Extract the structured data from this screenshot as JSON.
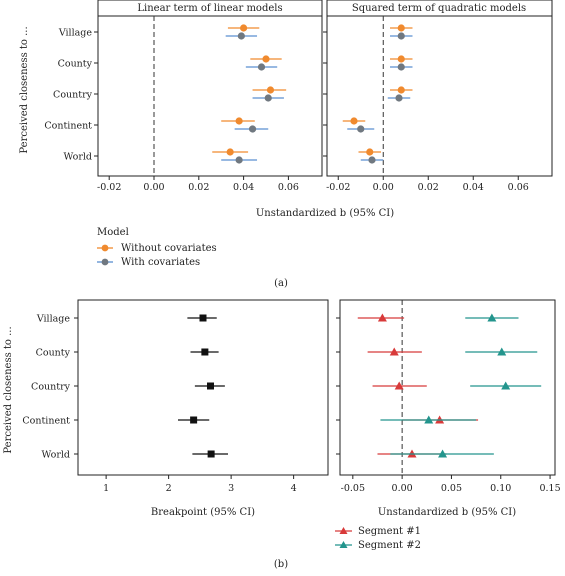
{
  "panel_a": {
    "ylabel": "Perceived closeness to ...",
    "xlabel": "Unstandardized b (95% CI)",
    "caption": "(a)",
    "legend": {
      "title": "Model",
      "entries": [
        "Without covariates",
        "With covariates"
      ]
    }
  },
  "panel_b": {
    "ylabel": "Perceived closeness to ...",
    "caption": "(b)",
    "legend": {
      "entries": [
        "Segment #1",
        "Segment #2"
      ]
    }
  },
  "colors": {
    "orange": "#f08a2e",
    "gray": "#707880",
    "blue": "#5b8fd0",
    "red": "#d83a3a",
    "teal": "#23958d"
  },
  "chart_data": [
    {
      "type": "scatter",
      "title": "Linear term of linear models",
      "xlabel": "Unstandardized b (95% CI)",
      "ylabel": "Perceived closeness to ...",
      "categories": [
        "Village",
        "County",
        "Country",
        "Continent",
        "World"
      ],
      "xlim": [
        -0.025,
        0.075
      ],
      "xticks": [
        "-0.02",
        "0.00",
        "0.02",
        "0.04",
        "0.06"
      ],
      "xtick_values": [
        -0.02,
        0,
        0.02,
        0.04,
        0.06
      ],
      "series": [
        {
          "name": "Without covariates",
          "values": [
            0.04,
            0.05,
            0.052,
            0.038,
            0.034
          ],
          "lo": [
            0.033,
            0.043,
            0.044,
            0.03,
            0.026
          ],
          "hi": [
            0.047,
            0.057,
            0.059,
            0.045,
            0.042
          ]
        },
        {
          "name": "With covariates",
          "values": [
            0.039,
            0.048,
            0.051,
            0.044,
            0.038
          ],
          "lo": [
            0.032,
            0.041,
            0.044,
            0.036,
            0.03
          ],
          "hi": [
            0.046,
            0.055,
            0.058,
            0.051,
            0.046
          ]
        }
      ]
    },
    {
      "type": "scatter",
      "title": "Squared term of quadratic models",
      "xlabel": "Unstandardized b (95% CI)",
      "categories": [
        "Village",
        "County",
        "Country",
        "Continent",
        "World"
      ],
      "xlim": [
        -0.025,
        0.075
      ],
      "xticks": [
        "-0.02",
        "0.00",
        "0.02",
        "0.04",
        "0.06"
      ],
      "xtick_values": [
        -0.02,
        0,
        0.02,
        0.04,
        0.06
      ],
      "series": [
        {
          "name": "Without covariates",
          "values": [
            0.008,
            0.008,
            0.008,
            -0.013,
            -0.006
          ],
          "lo": [
            0.003,
            0.003,
            0.003,
            -0.018,
            -0.011
          ],
          "hi": [
            0.013,
            0.013,
            0.013,
            -0.008,
            -0.001
          ]
        },
        {
          "name": "With covariates",
          "values": [
            0.008,
            0.008,
            0.007,
            -0.01,
            -0.005
          ],
          "lo": [
            0.003,
            0.003,
            0.002,
            -0.016,
            -0.01
          ],
          "hi": [
            0.013,
            0.013,
            0.012,
            -0.004,
            0.0
          ]
        }
      ]
    },
    {
      "type": "scatter",
      "xlabel": "Breakpoint (95% CI)",
      "ylabel": "Perceived closeness to ...",
      "categories": [
        "Village",
        "County",
        "Country",
        "Continent",
        "World"
      ],
      "xlim": [
        0.55,
        4.55
      ],
      "xticks": [
        "1",
        "2",
        "3",
        "4"
      ],
      "xtick_values": [
        1,
        2,
        3,
        4
      ],
      "series": [
        {
          "values": [
            2.55,
            2.58,
            2.67,
            2.4,
            2.68
          ],
          "lo": [
            2.3,
            2.35,
            2.42,
            2.15,
            2.38
          ],
          "hi": [
            2.77,
            2.8,
            2.9,
            2.65,
            2.95
          ]
        }
      ]
    },
    {
      "type": "scatter",
      "xlabel": "Unstandardized b (95% CI)",
      "categories": [
        "Village",
        "County",
        "Country",
        "Continent",
        "World"
      ],
      "xlim": [
        -0.063,
        0.155
      ],
      "xticks": [
        "-0.05",
        "0.00",
        "0.05",
        "0.10",
        "0.15"
      ],
      "xtick_values": [
        -0.05,
        0,
        0.05,
        0.1,
        0.15
      ],
      "series": [
        {
          "name": "Segment #1",
          "values": [
            -0.02,
            -0.008,
            -0.003,
            0.038,
            0.01
          ],
          "lo": [
            -0.045,
            -0.035,
            -0.03,
            0.0,
            -0.025
          ],
          "hi": [
            0.002,
            0.02,
            0.025,
            0.077,
            0.045
          ]
        },
        {
          "name": "Segment #2",
          "values": [
            0.091,
            0.101,
            0.105,
            0.027,
            0.041
          ],
          "lo": [
            0.064,
            0.064,
            0.069,
            -0.022,
            -0.012
          ],
          "hi": [
            0.118,
            0.137,
            0.141,
            0.075,
            0.093
          ]
        }
      ]
    }
  ]
}
